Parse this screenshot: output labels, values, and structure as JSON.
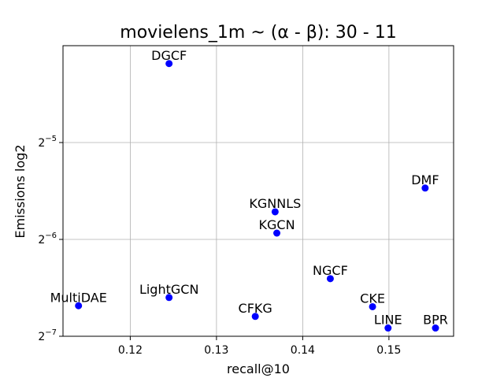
{
  "chart_data": {
    "type": "scatter",
    "title": "movielens_1m ~ (α - β): 30 - 11",
    "xlabel": "recall@10",
    "ylabel": "Emissions log2",
    "y_scale": "log2",
    "xlim": [
      0.1122,
      0.1575
    ],
    "ylim_log2": [
      -7.0,
      -4.0
    ],
    "grid": true,
    "color": "#0000ff",
    "x_ticks": [
      {
        "value": 0.12,
        "label": "0.12"
      },
      {
        "value": 0.13,
        "label": "0.13"
      },
      {
        "value": 0.14,
        "label": "0.14"
      },
      {
        "value": 0.15,
        "label": "0.15"
      }
    ],
    "y_ticks": [
      {
        "exp": -5,
        "base": "2",
        "sup": "−5"
      },
      {
        "exp": -6,
        "base": "2",
        "sup": "−6"
      },
      {
        "exp": -7,
        "base": "2",
        "sup": "−7"
      }
    ],
    "points": [
      {
        "name": "DGCF",
        "x": 0.1245,
        "y_log2": -4.185
      },
      {
        "name": "DMF",
        "x": 0.1542,
        "y_log2": -5.47
      },
      {
        "name": "KGNNLS",
        "x": 0.1368,
        "y_log2": -5.715
      },
      {
        "name": "KGCN",
        "x": 0.137,
        "y_log2": -5.935
      },
      {
        "name": "NGCF",
        "x": 0.1432,
        "y_log2": -6.405
      },
      {
        "name": "MultiDAE",
        "x": 0.114,
        "y_log2": -6.685
      },
      {
        "name": "LightGCN",
        "x": 0.1245,
        "y_log2": -6.6
      },
      {
        "name": "CFKG",
        "x": 0.1345,
        "y_log2": -6.795
      },
      {
        "name": "CKE",
        "x": 0.1481,
        "y_log2": -6.695
      },
      {
        "name": "LINE",
        "x": 0.1499,
        "y_log2": -6.915
      },
      {
        "name": "BPR",
        "x": 0.1554,
        "y_log2": -6.915
      }
    ]
  }
}
